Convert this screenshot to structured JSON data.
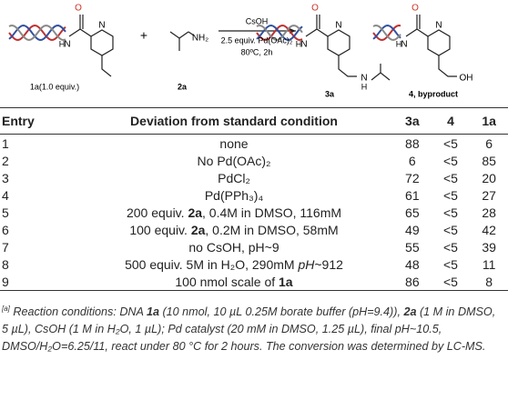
{
  "scheme": {
    "reactant_1": "1a(1.0 equiv.)",
    "reactant_2": "2a",
    "plus": "+",
    "reagent": "CsOH",
    "conditions_1": "2.5 equiv. Pd(OAc)₂",
    "conditions_2": "80ºC, 2h",
    "product": "3a",
    "byproduct": "4, byproduct",
    "atoms": [
      "O",
      "N",
      "H",
      "N",
      "NH₂",
      "O",
      "N",
      "H",
      "N",
      "N",
      "H",
      "O",
      "N",
      "H",
      "N",
      "OH"
    ]
  },
  "table": {
    "headers": [
      "Entry",
      "Deviation from standard condition",
      "3a",
      "4",
      "1a"
    ],
    "rows": [
      [
        "1",
        [
          {
            "text": "none"
          }
        ],
        "88",
        "<5",
        "6"
      ],
      [
        "2",
        [
          {
            "text": "No Pd(OAc)₂"
          }
        ],
        "6",
        "<5",
        "85"
      ],
      [
        "3",
        [
          {
            "text": "PdCl₂"
          }
        ],
        "72",
        "<5",
        "20"
      ],
      [
        "4",
        [
          {
            "text": "Pd(PPh₃)₄"
          }
        ],
        "61",
        "<5",
        "27"
      ],
      [
        "5",
        [
          {
            "text": "200 equiv. "
          },
          {
            "text": "2a",
            "bold": true
          },
          {
            "text": ", 0.4M in DMSO, 116mM"
          }
        ],
        "65",
        "<5",
        "28"
      ],
      [
        "6",
        [
          {
            "text": "100 equiv. "
          },
          {
            "text": "2a",
            "bold": true
          },
          {
            "text": ", 0.2M in DMSO, 58mM"
          }
        ],
        "49",
        "<5",
        "42"
      ],
      [
        "7",
        [
          {
            "text": "no CsOH, pH~9"
          }
        ],
        "55",
        "<5",
        "39"
      ],
      [
        "8",
        [
          {
            "text": "500 equiv. 5M in H₂O, 290mM "
          },
          {
            "text": "pH",
            "italic": true
          },
          {
            "text": "~912"
          }
        ],
        "48",
        "<5",
        "11"
      ],
      [
        "9",
        [
          {
            "text": "100 nmol scale of "
          },
          {
            "text": "1a",
            "bold": true
          }
        ],
        "86",
        "<5",
        "8"
      ]
    ]
  },
  "footnote": [
    {
      "text": "[a]",
      "sup": true
    },
    {
      "text": " Reaction conditions: DNA "
    },
    {
      "text": "1a",
      "bold": true
    },
    {
      "text": " (10 nmol, 10 µL 0.25M borate buffer (pH=9.4)), "
    },
    {
      "text": "2a",
      "bold": true
    },
    {
      "text": " (1 M in DMSO, 5 µL), CsOH (1 M in H₂O, 1 µL); Pd catalyst (20 mM in DMSO, 1.25 µL), final pH~10.5, DMSO/H₂O=6.25/11, react under 80 °C for 2 hours. The conversion was determined by LC-MS."
    }
  ]
}
